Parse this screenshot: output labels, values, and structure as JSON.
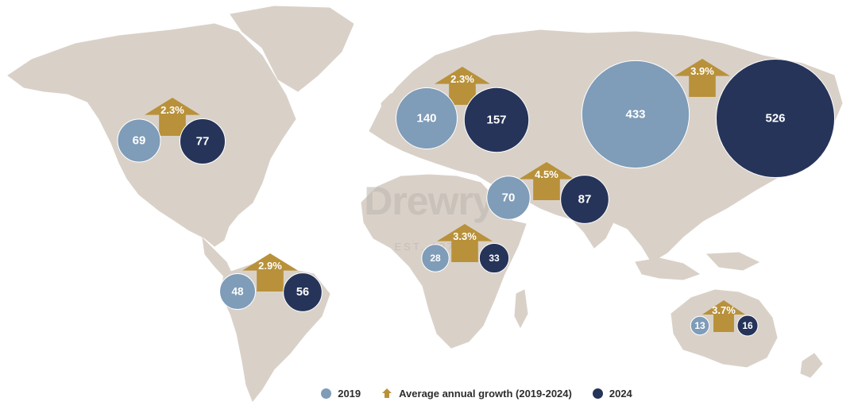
{
  "watermark": {
    "title": "Drewry",
    "subtitle": "EST. 1970"
  },
  "colors": {
    "y2019": "#7f9cb8",
    "y2024": "#263459",
    "growth": "#b8913a",
    "land": "#d9d1c8"
  },
  "legend": {
    "y2019": "2019",
    "growth": "Average annual growth (2019-2024)",
    "y2024": "2024"
  },
  "chart_data": {
    "type": "bubble-map",
    "series": [
      {
        "name": "2019"
      },
      {
        "name": "Average annual growth (2019-2024)"
      },
      {
        "name": "2024"
      }
    ],
    "regions": [
      {
        "v2019": 69,
        "v2024": 77,
        "growth": "2.3%"
      },
      {
        "v2019": 140,
        "v2024": 157,
        "growth": "2.3%"
      },
      {
        "v2019": 433,
        "v2024": 526,
        "growth": "3.9%"
      },
      {
        "v2019": 70,
        "v2024": 87,
        "growth": "4.5%"
      },
      {
        "v2019": 28,
        "v2024": 33,
        "growth": "3.3%"
      },
      {
        "v2019": 48,
        "v2024": 56,
        "growth": "2.9%"
      },
      {
        "v2019": 13,
        "v2024": 16,
        "growth": "3.7%"
      }
    ]
  }
}
